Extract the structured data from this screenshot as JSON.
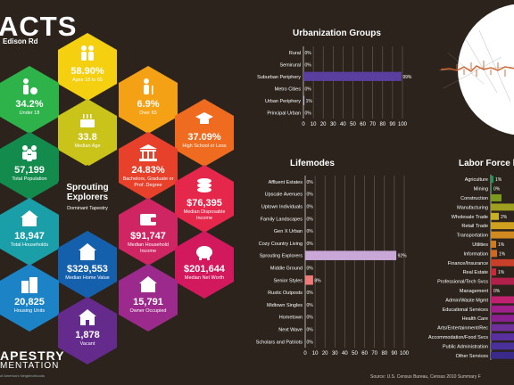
{
  "header": {
    "title": "ACTS",
    "subtitle": "Edison Rd"
  },
  "hexes": [
    {
      "value": "58.90%",
      "label": "Ages 18 to 65",
      "color": "#f4d010",
      "icon": "adults-icon"
    },
    {
      "value": "34.2%",
      "label": "Under 18",
      "color": "#2eb34a",
      "icon": "child-ball-icon"
    },
    {
      "value": "6.9%",
      "label": "Over 65",
      "color": "#f4a116",
      "icon": "senior-icon"
    },
    {
      "value": "33.8",
      "label": "Median Age",
      "color": "#c9c31a",
      "icon": "birthday-cake-icon"
    },
    {
      "value": "37.09%",
      "label": "High School or Less",
      "color": "#ee6b1f",
      "icon": "graduation-cap-icon"
    },
    {
      "value": "57,199",
      "label": "Total Population",
      "color": "#138b4d",
      "icon": "people-icon"
    },
    {
      "value": "24.83%",
      "label": "Bachelors, Graduate or Prof. Degree",
      "color": "#e7412c",
      "icon": "university-icon"
    },
    {
      "value": "Sprouting Explorers",
      "label": "Dominant Tapestry",
      "color": "#2b231c",
      "icon": ""
    },
    {
      "value": "$76,395",
      "label": "Median Disposable Income",
      "color": "#e5274b",
      "icon": "coins-icon"
    },
    {
      "value": "18,947",
      "label": "Total Households",
      "color": "#1a9fa8",
      "icon": "family-house-icon"
    },
    {
      "value": "$91,747",
      "label": "Median Household Income",
      "color": "#cf2562",
      "icon": "wallet-icon"
    },
    {
      "value": "$329,553",
      "label": "Median Home Value",
      "color": "#1560ad",
      "icon": "home-dollar-icon"
    },
    {
      "value": "$201,644",
      "label": "Median Net Worth",
      "color": "#d3195e",
      "icon": "piggy-bank-icon"
    },
    {
      "value": "20,825",
      "label": "Housing Units",
      "color": "#1c84c6",
      "icon": "buildings-icon"
    },
    {
      "value": "15,791",
      "label": "Owner Occupied",
      "color": "#9c2a8c",
      "icon": "house-key-icon"
    },
    {
      "value": "1,878",
      "label": "Vacant",
      "color": "#642a8c",
      "icon": "vacant-house-icon"
    }
  ],
  "brand": {
    "line1": "APESTRY",
    "line2": "MENTATION",
    "line3": "of America's Neighborhoods"
  },
  "source": "Source: U.S. Census Bureau, Census 2010 Summary F",
  "chart_data": [
    {
      "type": "bar",
      "orientation": "horizontal",
      "title": "Urbanization Groups",
      "categories": [
        "Rural",
        "Semirural",
        "Suburban Periphery",
        "Metro Cities",
        "Urban Periphery",
        "Principal Urban"
      ],
      "values": [
        0,
        0,
        99,
        0,
        1,
        0
      ],
      "data_labels": [
        "0%",
        "0%",
        "99%",
        "0%",
        "1%",
        "0%"
      ],
      "xlim": [
        0,
        100
      ],
      "xticks": [
        0,
        10,
        20,
        30,
        40,
        50,
        60,
        70,
        80,
        90,
        100
      ],
      "grid": true,
      "colors": [
        "#bdbbd9",
        "#bdbbd9",
        "#5b3f9e",
        "#bdbbd9",
        "#bdbbd9",
        "#bdbbd9"
      ]
    },
    {
      "type": "bar",
      "orientation": "horizontal",
      "title": "Lifemodes",
      "categories": [
        "Affluent Estates",
        "Upscale Avenues",
        "Uptown Individuals",
        "Family Landscapes",
        "Gen X Urban",
        "Cozy Country Living",
        "Sprouting Explorers",
        "Middle Ground",
        "Senior Styles",
        "Rustic Outposts",
        "Midtown Singles",
        "Hometown",
        "Next Wave",
        "Scholars and Patriots"
      ],
      "values": [
        0,
        0,
        0,
        0,
        0,
        0,
        92,
        0,
        8,
        0,
        0,
        0,
        0,
        0
      ],
      "data_labels": [
        "0%",
        "0%",
        "0%",
        "0%",
        "0%",
        "0%",
        "92%",
        "0%",
        "8%",
        "0%",
        "0%",
        "0%",
        "0%",
        "0%"
      ],
      "xlim": [
        0,
        100
      ],
      "xticks": [
        0,
        10,
        20,
        30,
        40,
        50,
        60,
        70,
        80,
        90,
        100
      ],
      "grid": true,
      "colors": [
        "#c9a8d8",
        "#c9a8d8",
        "#c9a8d8",
        "#c9a8d8",
        "#c9a8d8",
        "#c9a8d8",
        "#c9a8d8",
        "#c9a8d8",
        "#f07a7a",
        "#c9a8d8",
        "#c9a8d8",
        "#c9a8d8",
        "#c9a8d8",
        "#c9a8d8"
      ]
    },
    {
      "type": "bar",
      "orientation": "horizontal",
      "title": "Labor Force b",
      "categories": [
        "Agriculture",
        "Mining",
        "Construction",
        "Manufacturing",
        "Wholesale Trade",
        "Retail Trade",
        "Transportation",
        "Utilities",
        "Information",
        "Finance/Insurance",
        "Real Estate",
        "Professional/Tech Svcs",
        "Management",
        "Admin/Waste Mgmt",
        "Educational Services",
        "Health Care",
        "Arts/Entertainment/Rec",
        "Accommodation/Food Svcs",
        "Public Administration",
        "Other Services"
      ],
      "data_labels": [
        "1%",
        "0%",
        "",
        "",
        "2%",
        "",
        "",
        "1%",
        "1%",
        "",
        "1%",
        "",
        "0%",
        "",
        "",
        "",
        "",
        "",
        "",
        ""
      ],
      "colors": [
        "#1a9a5a",
        "#1a9a5a",
        "#7a9a20",
        "#a0a020",
        "#c9b020",
        "#d0a020",
        "#d08a20",
        "#d07a20",
        "#d06a20",
        "#c9402a",
        "#c92a3a",
        "#b0204a",
        "#c0205a",
        "#c02070",
        "#a0208a",
        "#8a2090",
        "#70309a",
        "#5a30a0",
        "#4a309a",
        "#3a2a8a"
      ]
    }
  ],
  "map": {
    "background": "#ffffff",
    "route_color": "#d2622a",
    "road_color": "#8a8a8a"
  }
}
